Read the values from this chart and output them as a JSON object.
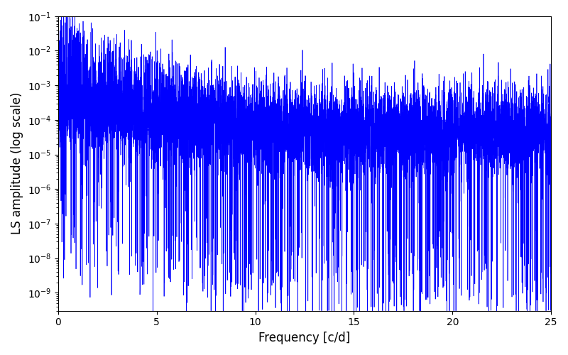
{
  "title": "",
  "xlabel": "Frequency [c/d]",
  "ylabel": "LS amplitude (log scale)",
  "xlim": [
    0,
    25
  ],
  "ylim": [
    3e-10,
    0.1
  ],
  "yscale": "log",
  "line_color": "#0000ff",
  "line_width": 0.5,
  "bg_color": "#ffffff",
  "figsize": [
    8.0,
    5.0
  ],
  "dpi": 100,
  "freq_max": 25.0,
  "n_points": 8000,
  "seed": 7
}
